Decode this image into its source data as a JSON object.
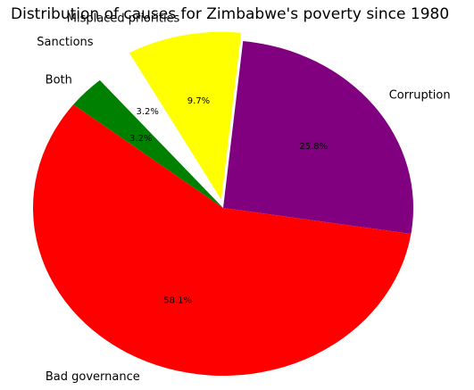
{
  "chart_data": {
    "type": "pie",
    "title": "Distribution of causes for Zimbabwe's poverty since 1980",
    "categories": [
      "Corruption",
      "Bad governance",
      "Both",
      "Sanctions",
      "Misplaced priorities"
    ],
    "values": [
      25.8,
      58.1,
      3.2,
      3.2,
      9.7
    ],
    "value_labels": [
      "25.8%",
      "58.1%",
      "3.2%",
      "3.2%",
      "9.7%"
    ],
    "colors": [
      "#800080",
      "#ff0000",
      "#008000",
      "#ffffff",
      "#ffff00"
    ],
    "explode": [
      0,
      0,
      0,
      0.1,
      0.05
    ]
  }
}
